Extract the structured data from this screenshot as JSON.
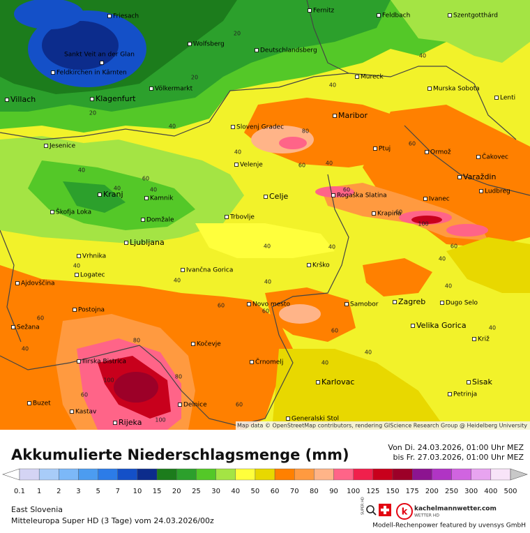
{
  "map": {
    "cities": [
      "Friesach",
      "Fernitz",
      "Feldbach",
      "Szentgotthárd",
      "Sankt Veit an der Glan",
      "Wolfsberg",
      "Deutschlandsberg",
      "Feldkirchen in Kärnten",
      "Mureck",
      "Villach",
      "Klagenfurt",
      "Völkermarkt",
      "Murska Sobota",
      "Lenti",
      "Maribor",
      "Slovenj Gradec",
      "Jesenice",
      "Ptuj",
      "Ormož",
      "Čakovec",
      "Velenje",
      "Varaždin",
      "Kranj",
      "Kamnik",
      "Celje",
      "Rogaška Slatina",
      "Ivanec",
      "Ludbreg",
      "Škofja Loka",
      "Krapina",
      "Trbovlje",
      "Domžale",
      "Ljubljana",
      "Vrhnika",
      "Logatec",
      "Ivančna Gorica",
      "Krško",
      "Ajdovščina",
      "Zagreb",
      "Samobor",
      "Dugo Selo",
      "Novo mesto",
      "Postojna",
      "Sežana",
      "Velika Gorica",
      "Kočevje",
      "Križ",
      "Ilirska Bistrica",
      "Črnomelj",
      "Karlovac",
      "Sisak",
      "Buzet",
      "Delnice",
      "Petrinja",
      "Kastav",
      "Rijeka",
      "Generalski Stol"
    ],
    "contour_labels": [
      20,
      20,
      20,
      40,
      40,
      40,
      60,
      80,
      40,
      40,
      60,
      40,
      60,
      40,
      40,
      60,
      60,
      100,
      60,
      40,
      40,
      40,
      40,
      40,
      40,
      60,
      60,
      60,
      60,
      40,
      80,
      100,
      80,
      60,
      100,
      60,
      40,
      40,
      40,
      40
    ],
    "attribution": "Map data © OpenStreetMap contributors, rendering GIScience Research Group @ Heidelberg University"
  },
  "legend": {
    "title": "Akkumulierte Niederschlagsmenge (mm)",
    "period": [
      "Von Di. 24.03.2026, 01:00 Uhr MEZ",
      "bis Fr. 27.03.2026, 01:00 Uhr MEZ"
    ],
    "ticks": [
      0.1,
      1,
      2,
      3,
      5,
      7,
      10,
      15,
      20,
      25,
      30,
      40,
      50,
      60,
      70,
      80,
      90,
      100,
      125,
      150,
      175,
      200,
      250,
      300,
      400,
      500
    ],
    "colors": [
      "#ffffff",
      "#d4d4f4",
      "#a8ccf8",
      "#7cb8f8",
      "#4c9cf0",
      "#2c7ce8",
      "#1450c8",
      "#0c2c8c",
      "#1c7c1c",
      "#2ca02c",
      "#54c828",
      "#a4e444",
      "#ffff3c",
      "#e8d800",
      "#ff8000",
      "#ff9a40",
      "#ffb488",
      "#ff6488",
      "#f0204c",
      "#c8001c",
      "#9c0028",
      "#8c1490",
      "#b034c4",
      "#d064e0",
      "#e8a4f0",
      "#f8e4f8",
      "#c8c8c8"
    ]
  },
  "footer": {
    "region": "East Slovenia",
    "model": "Mitteleuropa Super HD (3 Tage) vom 24.03.2026/00z",
    "super_hd": "SUPER HD",
    "brand": "kachelmannwetter.com",
    "brand_sub": "WETTER HD",
    "sponsor": "Modell-Rechenpower featured by uvensys GmbH"
  }
}
